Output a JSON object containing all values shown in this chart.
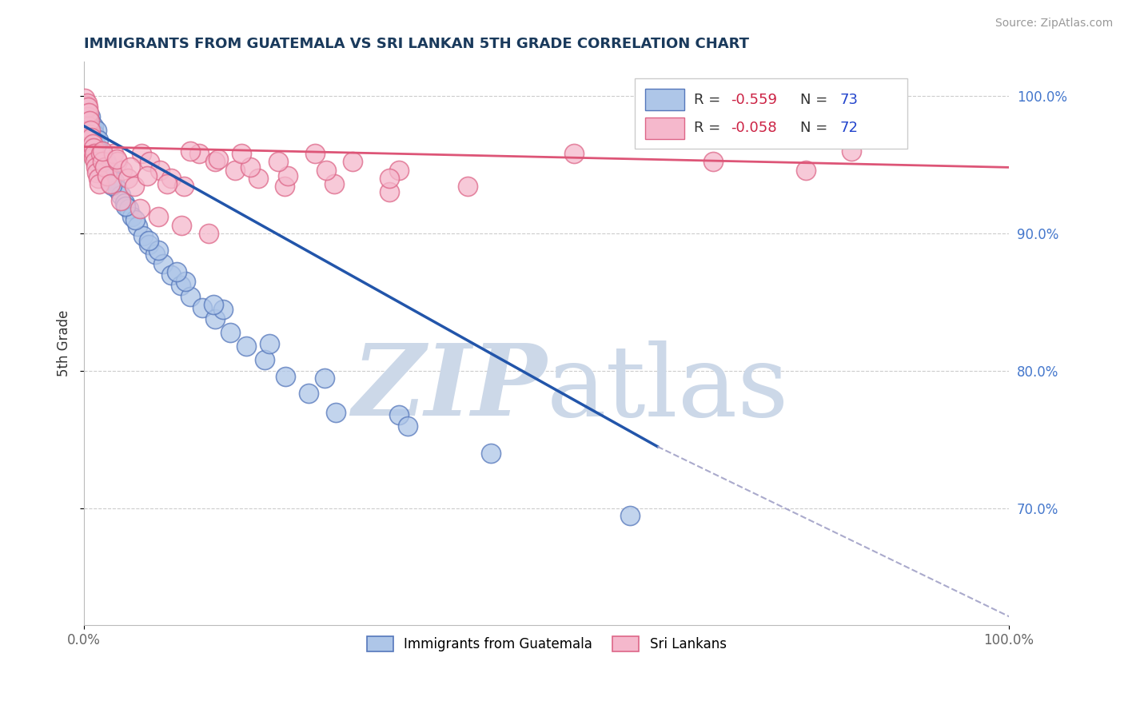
{
  "title": "IMMIGRANTS FROM GUATEMALA VS SRI LANKAN 5TH GRADE CORRELATION CHART",
  "source_text": "Source: ZipAtlas.com",
  "ylabel": "5th Grade",
  "xlim": [
    0.0,
    1.0
  ],
  "ylim": [
    0.615,
    1.025
  ],
  "y_ticks_right": [
    0.7,
    0.8,
    0.9,
    1.0
  ],
  "y_tick_labels_right": [
    "70.0%",
    "80.0%",
    "90.0%",
    "100.0%"
  ],
  "blue_color": "#aec6e8",
  "pink_color": "#f5b8cc",
  "blue_edge": "#5577bb",
  "pink_edge": "#dd6688",
  "blue_line_color": "#2255aa",
  "pink_line_color": "#dd5577",
  "dash_line_color": "#aaaacc",
  "watermark_color": "#ccd8e8",
  "R_blue": -0.559,
  "N_blue": 73,
  "R_pink": -0.058,
  "N_pink": 72,
  "legend_R_color": "#cc2244",
  "legend_N_color": "#2244cc",
  "blue_line_x": [
    0.0,
    0.62
  ],
  "blue_line_y": [
    0.978,
    0.745
  ],
  "pink_line_x": [
    0.0,
    1.0
  ],
  "pink_line_y": [
    0.963,
    0.948
  ],
  "dash_line_x": [
    0.62,
    1.02
  ],
  "dash_line_y": [
    0.745,
    0.615
  ],
  "blue_scatter_x": [
    0.002,
    0.003,
    0.003,
    0.004,
    0.004,
    0.005,
    0.005,
    0.006,
    0.006,
    0.007,
    0.007,
    0.008,
    0.008,
    0.009,
    0.009,
    0.01,
    0.01,
    0.011,
    0.011,
    0.012,
    0.012,
    0.013,
    0.014,
    0.015,
    0.015,
    0.016,
    0.017,
    0.018,
    0.019,
    0.02,
    0.022,
    0.024,
    0.026,
    0.028,
    0.03,
    0.033,
    0.036,
    0.04,
    0.044,
    0.048,
    0.052,
    0.058,
    0.064,
    0.07,
    0.077,
    0.085,
    0.094,
    0.104,
    0.115,
    0.128,
    0.142,
    0.158,
    0.175,
    0.195,
    0.218,
    0.243,
    0.272,
    0.03,
    0.055,
    0.08,
    0.11,
    0.15,
    0.2,
    0.26,
    0.34,
    0.44,
    0.59,
    0.025,
    0.045,
    0.07,
    0.1,
    0.14,
    0.35
  ],
  "blue_scatter_y": [
    0.99,
    0.985,
    0.992,
    0.988,
    0.98,
    0.975,
    0.983,
    0.978,
    0.97,
    0.985,
    0.973,
    0.968,
    0.98,
    0.975,
    0.965,
    0.97,
    0.978,
    0.963,
    0.972,
    0.958,
    0.966,
    0.96,
    0.975,
    0.955,
    0.968,
    0.95,
    0.96,
    0.955,
    0.945,
    0.958,
    0.948,
    0.952,
    0.942,
    0.945,
    0.94,
    0.938,
    0.932,
    0.928,
    0.922,
    0.918,
    0.912,
    0.905,
    0.898,
    0.892,
    0.885,
    0.878,
    0.87,
    0.862,
    0.854,
    0.846,
    0.838,
    0.828,
    0.818,
    0.808,
    0.796,
    0.784,
    0.77,
    0.935,
    0.91,
    0.888,
    0.865,
    0.845,
    0.82,
    0.795,
    0.768,
    0.74,
    0.695,
    0.95,
    0.92,
    0.895,
    0.872,
    0.848,
    0.76
  ],
  "pink_scatter_x": [
    0.001,
    0.002,
    0.003,
    0.003,
    0.004,
    0.004,
    0.005,
    0.005,
    0.006,
    0.006,
    0.007,
    0.007,
    0.008,
    0.008,
    0.009,
    0.009,
    0.01,
    0.01,
    0.011,
    0.012,
    0.013,
    0.014,
    0.015,
    0.016,
    0.018,
    0.02,
    0.022,
    0.025,
    0.028,
    0.032,
    0.036,
    0.041,
    0.047,
    0.054,
    0.062,
    0.071,
    0.082,
    0.094,
    0.108,
    0.124,
    0.142,
    0.163,
    0.188,
    0.217,
    0.25,
    0.29,
    0.34,
    0.02,
    0.035,
    0.05,
    0.068,
    0.09,
    0.115,
    0.145,
    0.18,
    0.22,
    0.27,
    0.33,
    0.04,
    0.06,
    0.08,
    0.105,
    0.135,
    0.17,
    0.21,
    0.262,
    0.33,
    0.415,
    0.53,
    0.68,
    0.78,
    0.83
  ],
  "pink_scatter_y": [
    0.998,
    0.993,
    0.988,
    0.995,
    0.985,
    0.992,
    0.978,
    0.988,
    0.972,
    0.982,
    0.968,
    0.975,
    0.962,
    0.97,
    0.958,
    0.965,
    0.955,
    0.962,
    0.958,
    0.952,
    0.948,
    0.944,
    0.94,
    0.936,
    0.958,
    0.952,
    0.948,
    0.942,
    0.936,
    0.958,
    0.952,
    0.946,
    0.94,
    0.934,
    0.958,
    0.952,
    0.946,
    0.94,
    0.934,
    0.958,
    0.952,
    0.946,
    0.94,
    0.934,
    0.958,
    0.952,
    0.946,
    0.96,
    0.954,
    0.948,
    0.942,
    0.936,
    0.96,
    0.954,
    0.948,
    0.942,
    0.936,
    0.93,
    0.924,
    0.918,
    0.912,
    0.906,
    0.9,
    0.958,
    0.952,
    0.946,
    0.94,
    0.934,
    0.958,
    0.952,
    0.946,
    0.96
  ]
}
